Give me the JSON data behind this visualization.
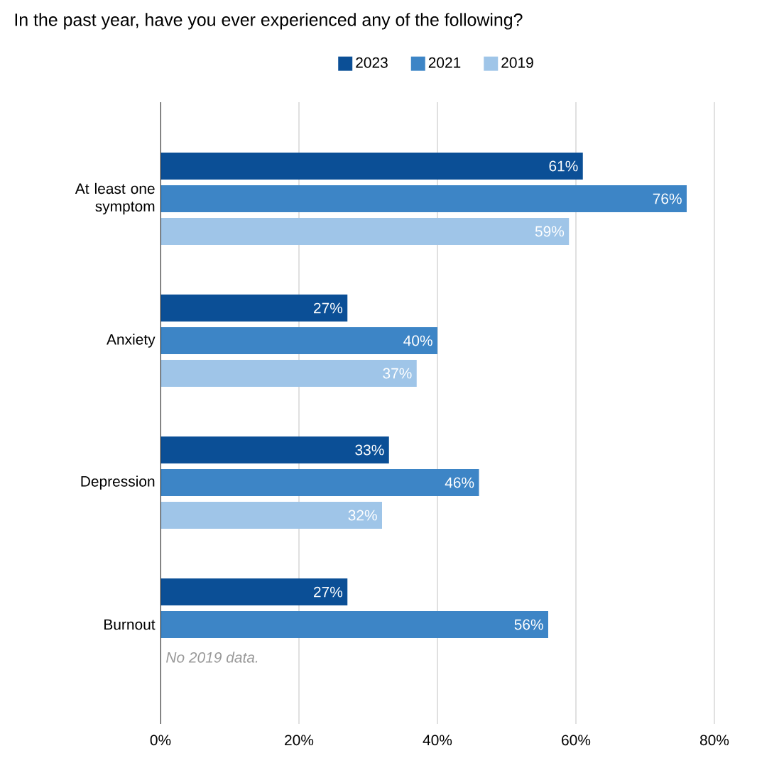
{
  "chart_data": {
    "type": "bar",
    "orientation": "horizontal",
    "title": "In the past year, have you ever experienced any of the following?",
    "categories": [
      "At least one symptom",
      "Anxiety",
      "Depression",
      "Burnout"
    ],
    "series": [
      {
        "name": "2023",
        "color": "#0b4f96",
        "values": [
          61,
          27,
          33,
          27
        ],
        "value_labels": [
          "61%",
          "27%",
          "33%",
          "27%"
        ]
      },
      {
        "name": "2021",
        "color": "#3d85c6",
        "values": [
          76,
          40,
          46,
          56
        ],
        "value_labels": [
          "76%",
          "40%",
          "46%",
          "56%"
        ]
      },
      {
        "name": "2019",
        "color": "#9fc5e8",
        "values": [
          59,
          37,
          32,
          null
        ],
        "value_labels": [
          "59%",
          "37%",
          "32%",
          null
        ]
      }
    ],
    "xlim": [
      0,
      80
    ],
    "xticks": [
      {
        "value": 0,
        "label": "0%"
      },
      {
        "value": 20,
        "label": "20%"
      },
      {
        "value": 40,
        "label": "40%"
      },
      {
        "value": 60,
        "label": "60%"
      },
      {
        "value": 80,
        "label": "80%"
      }
    ],
    "grid": "x",
    "legend": "top",
    "annotations": [
      "No 2019 data."
    ]
  }
}
